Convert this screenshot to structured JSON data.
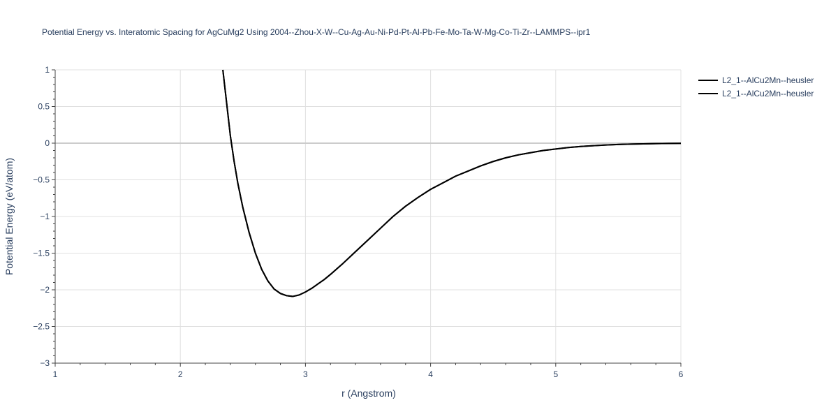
{
  "chart_data": {
    "type": "line",
    "title": "Potential Energy vs. Interatomic Spacing for AgCuMg2 Using 2004--Zhou-X-W--Cu-Ag-Au-Ni-Pd-Pt-Al-Pb-Fe-Mo-Ta-W-Mg-Co-Ti-Zr--LAMMPS--ipr1",
    "xlabel": "r (Angstrom)",
    "ylabel": "Potential Energy (eV/atom)",
    "xlim": [
      1,
      6
    ],
    "ylim": [
      -3,
      1
    ],
    "xticks": [
      1,
      2,
      3,
      4,
      5,
      6
    ],
    "xtick_labels": [
      "1",
      "2",
      "3",
      "4",
      "5",
      "6"
    ],
    "yticks": [
      1,
      0.5,
      0,
      -0.5,
      -1,
      -1.5,
      -2,
      -2.5,
      -3
    ],
    "ytick_labels": [
      "1",
      "0.5",
      "0",
      "−0.5",
      "−1",
      "−1.5",
      "−2",
      "−2.5",
      "−3"
    ],
    "grid": true,
    "legend_position": "top-right",
    "series": [
      {
        "name": "L2_1--AlCu2Mn--heusler",
        "color": "#000000",
        "x": [
          2.34,
          2.37,
          2.4,
          2.43,
          2.46,
          2.5,
          2.55,
          2.6,
          2.65,
          2.7,
          2.75,
          2.8,
          2.85,
          2.9,
          2.95,
          3.0,
          3.05,
          3.1,
          3.15,
          3.2,
          3.3,
          3.4,
          3.5,
          3.6,
          3.7,
          3.8,
          3.9,
          4.0,
          4.1,
          4.2,
          4.3,
          4.4,
          4.5,
          4.6,
          4.7,
          4.8,
          4.9,
          5.0,
          5.1,
          5.2,
          5.3,
          5.4,
          5.5,
          5.6,
          5.7,
          5.8,
          5.9,
          6.0
        ],
        "y": [
          1.0,
          0.55,
          0.1,
          -0.25,
          -0.55,
          -0.88,
          -1.22,
          -1.5,
          -1.72,
          -1.88,
          -1.99,
          -2.05,
          -2.08,
          -2.09,
          -2.07,
          -2.03,
          -1.98,
          -1.92,
          -1.86,
          -1.79,
          -1.64,
          -1.48,
          -1.32,
          -1.16,
          -1.0,
          -0.86,
          -0.74,
          -0.63,
          -0.54,
          -0.45,
          -0.38,
          -0.31,
          -0.25,
          -0.2,
          -0.16,
          -0.13,
          -0.1,
          -0.08,
          -0.06,
          -0.045,
          -0.035,
          -0.025,
          -0.018,
          -0.013,
          -0.009,
          -0.006,
          -0.004,
          -0.002
        ]
      },
      {
        "name": "L2_1--AlCu2Mn--heusler",
        "color": "#000000",
        "x": [
          2.34,
          2.37,
          2.4,
          2.43,
          2.46,
          2.5,
          2.55,
          2.6,
          2.65,
          2.7,
          2.75,
          2.8,
          2.85,
          2.9,
          2.95,
          3.0,
          3.05,
          3.1,
          3.15,
          3.2,
          3.3,
          3.4,
          3.5,
          3.6,
          3.7,
          3.8,
          3.9,
          4.0,
          4.1,
          4.2,
          4.3,
          4.4,
          4.5,
          4.6,
          4.7,
          4.8,
          4.9,
          5.0,
          5.1,
          5.2,
          5.3,
          5.4,
          5.5,
          5.6,
          5.7,
          5.8,
          5.9,
          6.0
        ],
        "y": [
          1.0,
          0.55,
          0.1,
          -0.25,
          -0.55,
          -0.88,
          -1.22,
          -1.5,
          -1.72,
          -1.88,
          -1.99,
          -2.05,
          -2.08,
          -2.09,
          -2.07,
          -2.03,
          -1.98,
          -1.92,
          -1.86,
          -1.79,
          -1.64,
          -1.48,
          -1.32,
          -1.16,
          -1.0,
          -0.86,
          -0.74,
          -0.63,
          -0.54,
          -0.45,
          -0.38,
          -0.31,
          -0.25,
          -0.2,
          -0.16,
          -0.13,
          -0.1,
          -0.08,
          -0.06,
          -0.045,
          -0.035,
          -0.025,
          -0.018,
          -0.013,
          -0.009,
          -0.006,
          -0.004,
          -0.002
        ]
      }
    ]
  }
}
